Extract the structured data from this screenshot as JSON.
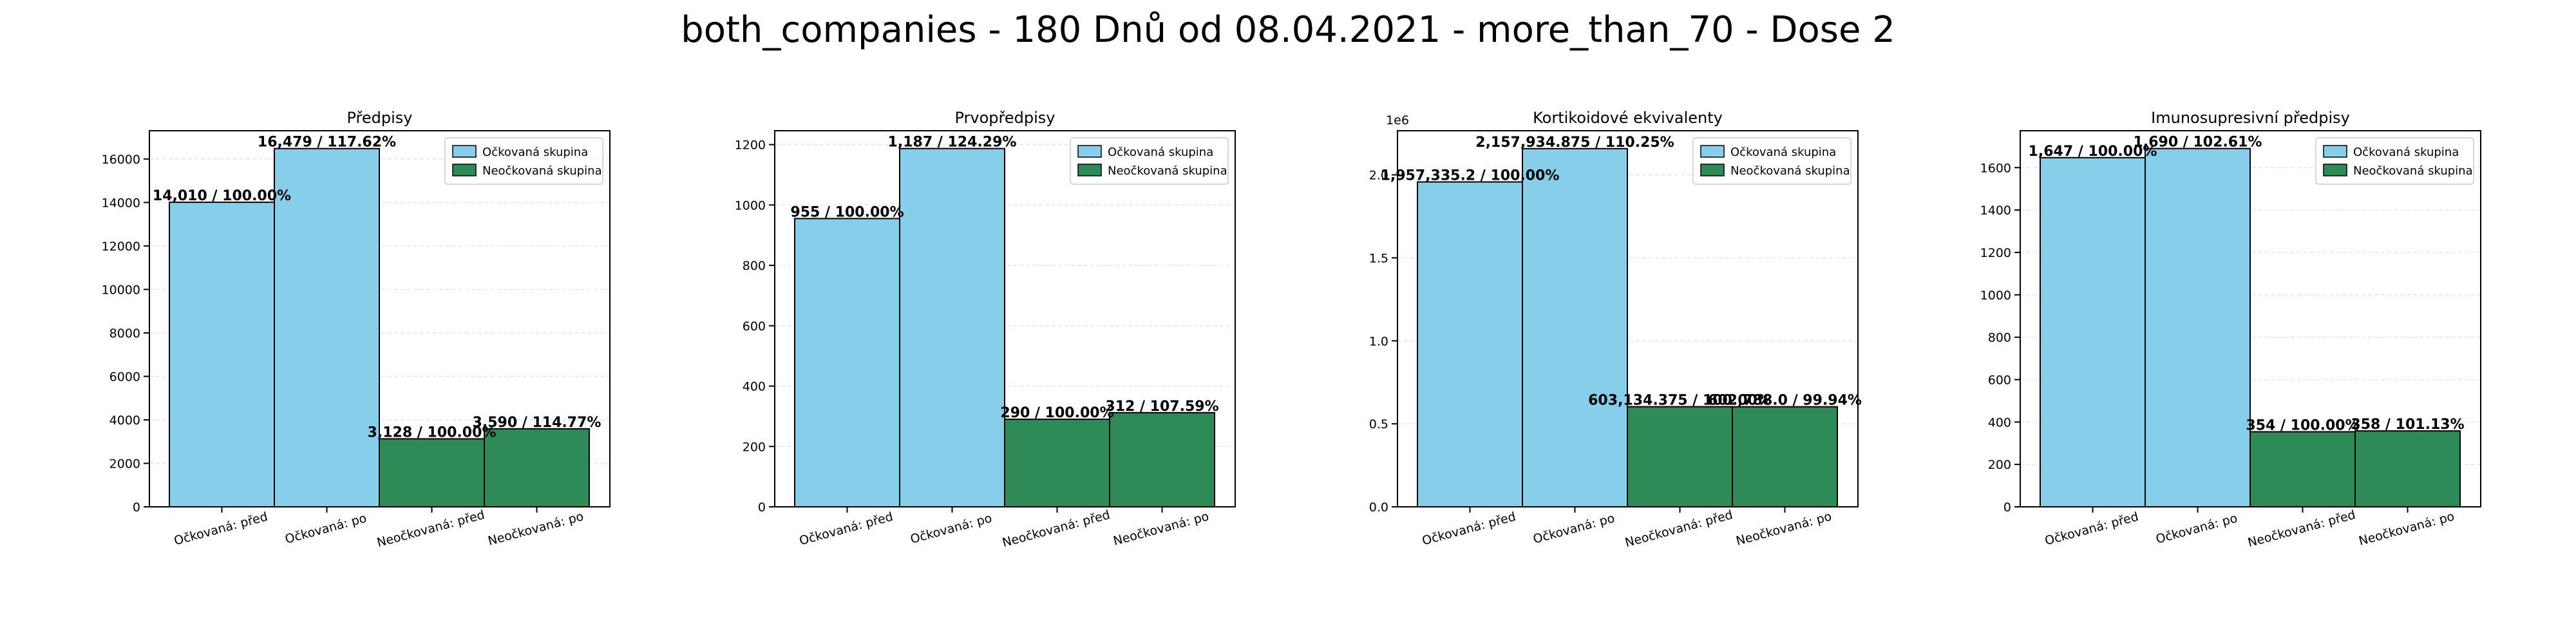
{
  "title": "both_companies - 180 Dnů od 08.04.2021 - more_than_70 - Dose 2",
  "colors": {
    "vaccinated": "#87ceeb",
    "unvaccinated": "#2e8b57",
    "edge": "#000000",
    "grid": "#e6e6e6"
  },
  "legend": {
    "vaccinated": "Očkovaná skupina",
    "unvaccinated": "Neočkovaná skupina",
    "placement": "upper right"
  },
  "chart_data": [
    {
      "type": "bar",
      "title": "Předpisy",
      "categories": [
        "Očkovaná: před",
        "Očkovaná: po",
        "Neočkovaná: před",
        "Neočkovaná: po"
      ],
      "values": [
        14010,
        16479,
        3128,
        3590
      ],
      "groups": [
        "vaccinated",
        "vaccinated",
        "unvaccinated",
        "unvaccinated"
      ],
      "bar_labels": [
        "14,010 / 100.00%",
        "16,479 / 117.62%",
        "3,128 / 100.00%",
        "3,590 / 114.77%"
      ],
      "ylim": [
        0,
        17300
      ],
      "yticks": [
        0,
        2000,
        4000,
        6000,
        8000,
        10000,
        12000,
        14000,
        16000
      ],
      "ytick_labels": [
        "0",
        "2000",
        "4000",
        "6000",
        "8000",
        "10000",
        "12000",
        "14000",
        "16000"
      ],
      "offset_text": "",
      "grid": true
    },
    {
      "type": "bar",
      "title": "Prvopředpisy",
      "categories": [
        "Očkovaná: před",
        "Očkovaná: po",
        "Neočkovaná: před",
        "Neočkovaná: po"
      ],
      "values": [
        955,
        1187,
        290,
        312
      ],
      "groups": [
        "vaccinated",
        "vaccinated",
        "unvaccinated",
        "unvaccinated"
      ],
      "bar_labels": [
        "955 / 100.00%",
        "1,187 / 124.29%",
        "290 / 100.00%",
        "312 / 107.59%"
      ],
      "ylim": [
        0,
        1246
      ],
      "yticks": [
        0,
        200,
        400,
        600,
        800,
        1000,
        1200
      ],
      "ytick_labels": [
        "0",
        "200",
        "400",
        "600",
        "800",
        "1000",
        "1200"
      ],
      "offset_text": "",
      "grid": true
    },
    {
      "type": "bar",
      "title": "Kortikoidové ekvivalenty",
      "categories": [
        "Očkovaná: před",
        "Očkovaná: po",
        "Neočkovaná: před",
        "Neočkovaná: po"
      ],
      "values": [
        1957335.2,
        2157934.875,
        603134.375,
        602788.0
      ],
      "groups": [
        "vaccinated",
        "vaccinated",
        "unvaccinated",
        "unvaccinated"
      ],
      "bar_labels": [
        "1,957,335.2 / 100.00%",
        "2,157,934.875 / 110.25%",
        "603,134.375 / 100.00%",
        "602,788.0 / 99.94%"
      ],
      "ylim": [
        0,
        2265800
      ],
      "yticks": [
        0,
        500000,
        1000000,
        1500000,
        2000000
      ],
      "ytick_labels": [
        "0.0",
        "0.5",
        "1.0",
        "1.5",
        "2.0"
      ],
      "offset_text": "1e6",
      "grid": true
    },
    {
      "type": "bar",
      "title": "Imunosupresivní předpisy",
      "categories": [
        "Očkovaná: před",
        "Očkovaná: po",
        "Neočkovaná: před",
        "Neočkovaná: po"
      ],
      "values": [
        1647,
        1690,
        354,
        358
      ],
      "groups": [
        "vaccinated",
        "vaccinated",
        "unvaccinated",
        "unvaccinated"
      ],
      "bar_labels": [
        "1,647 / 100.00%",
        "1,690 / 102.61%",
        "354 / 100.00%",
        "358 / 101.13%"
      ],
      "ylim": [
        0,
        1774
      ],
      "yticks": [
        0,
        200,
        400,
        600,
        800,
        1000,
        1200,
        1400,
        1600
      ],
      "ytick_labels": [
        "0",
        "200",
        "400",
        "600",
        "800",
        "1000",
        "1200",
        "1400",
        "1600"
      ],
      "offset_text": "",
      "grid": true
    }
  ]
}
